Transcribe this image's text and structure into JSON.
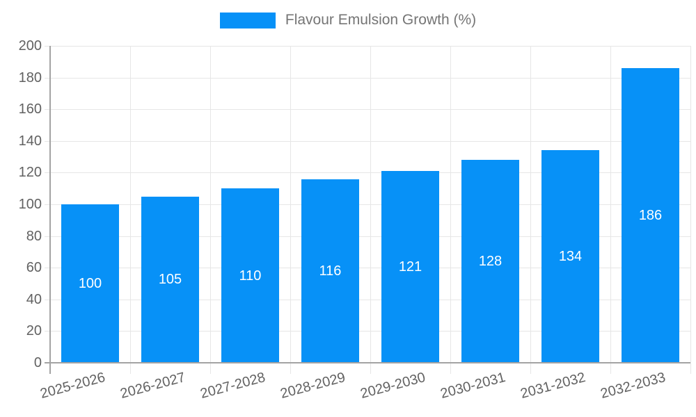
{
  "chart_data": {
    "type": "bar",
    "title": "Flavour Emulsion Growth (%)",
    "legend": {
      "label": "Flavour Emulsion Growth (%)",
      "position": "top"
    },
    "categories": [
      "2025-2026",
      "2026-2027",
      "2027-2028",
      "2028-2029",
      "2029-2030",
      "2030-2031",
      "2031-2032",
      "2032-2033"
    ],
    "values": [
      100,
      105,
      110,
      116,
      121,
      128,
      134,
      186
    ],
    "bar_value_labels": [
      "100",
      "105",
      "110",
      "116",
      "121",
      "128",
      "134",
      "186"
    ],
    "xlabel": "",
    "ylabel": "",
    "ylim": [
      0,
      200
    ],
    "ytick_step": 20,
    "ytick_labels": [
      "0",
      "20",
      "40",
      "60",
      "80",
      "100",
      "120",
      "140",
      "160",
      "180",
      "200"
    ],
    "grid": true,
    "x_label_rotation_deg": -15,
    "colors": {
      "bar": "#0791f7",
      "grid": "#e6e6e6",
      "axis": "#a3a3a3",
      "tick_label": "#616161",
      "legend_text": "#757575",
      "bar_value_label": "#ffffff",
      "background": "#ffffff"
    }
  }
}
